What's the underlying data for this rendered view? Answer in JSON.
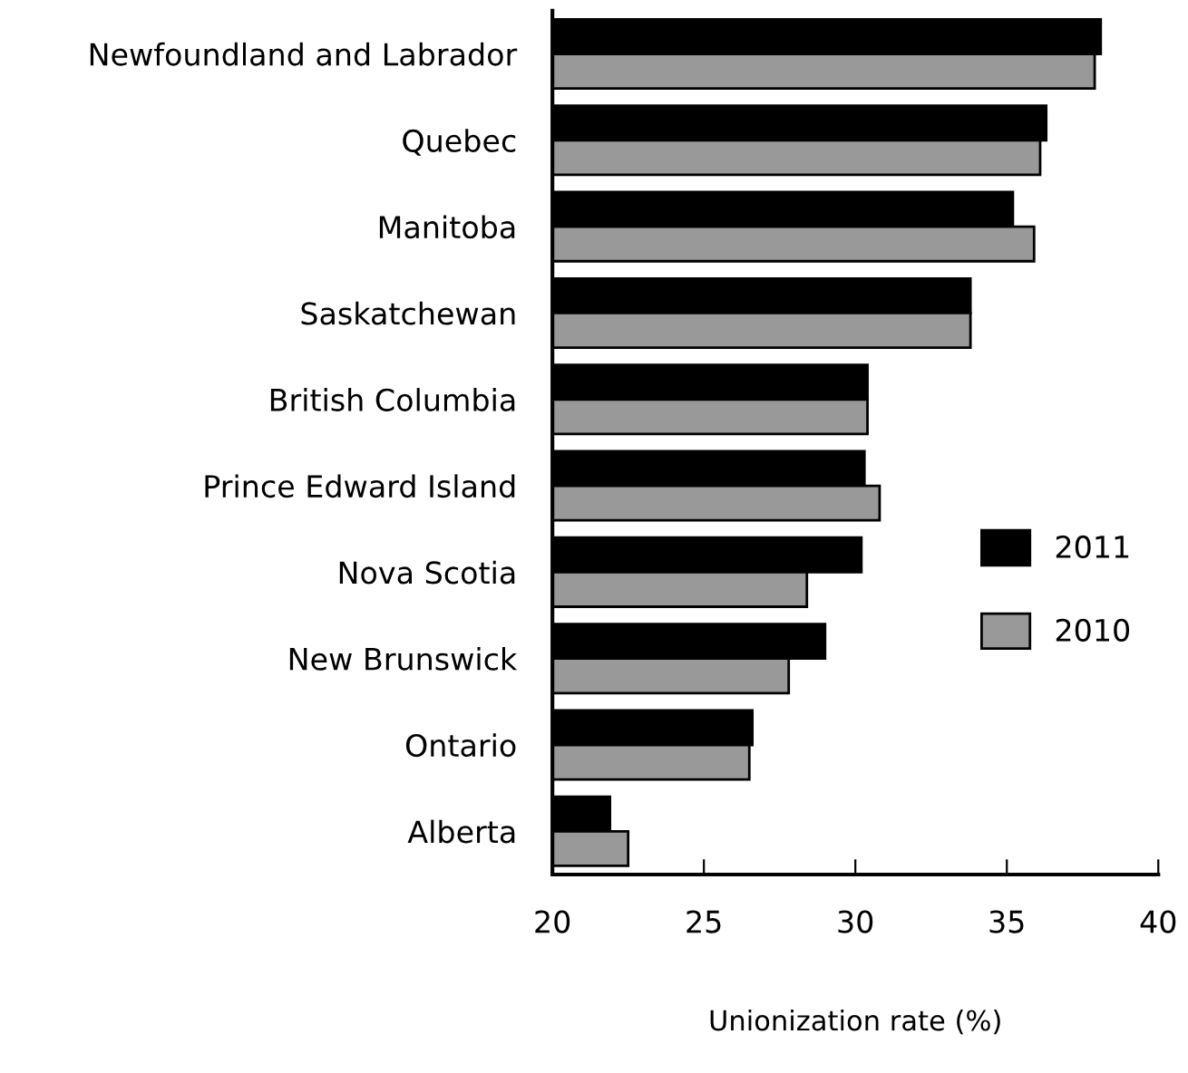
{
  "chart_data": {
    "type": "bar",
    "orientation": "horizontal",
    "categories": [
      "Newfoundland and Labrador",
      "Quebec",
      "Manitoba",
      "Saskatchewan",
      "British Columbia",
      "Prince Edward Island",
      "Nova Scotia",
      "New Brunswick",
      "Ontario",
      "Alberta"
    ],
    "series": [
      {
        "name": "2011",
        "color": "#000000",
        "values": [
          38.1,
          36.3,
          35.2,
          33.8,
          30.4,
          30.3,
          30.2,
          29.0,
          26.6,
          21.9
        ]
      },
      {
        "name": "2010",
        "color": "#999999",
        "values": [
          37.9,
          36.1,
          35.9,
          33.8,
          30.4,
          30.8,
          28.4,
          27.8,
          26.5,
          22.5
        ]
      }
    ],
    "xlabel": "Unionization rate (%)",
    "xlim": [
      20,
      40
    ],
    "xticks": [
      20,
      25,
      30,
      35,
      40
    ],
    "grid": false,
    "legend": "right"
  }
}
